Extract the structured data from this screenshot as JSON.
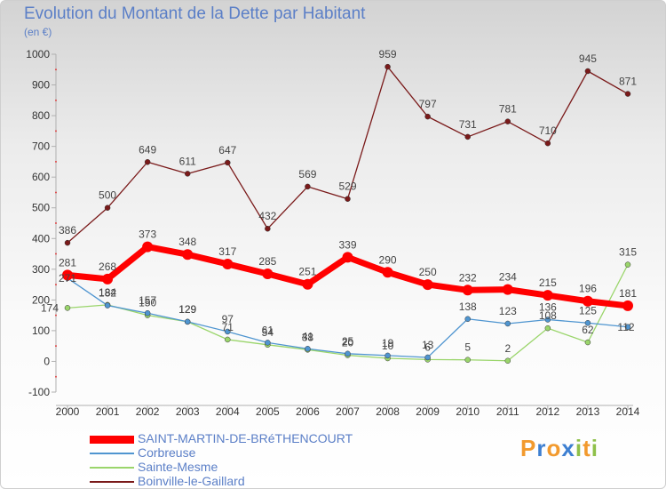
{
  "title": "Evolution du Montant de la Dette par Habitant",
  "unit": "(en €)",
  "logo": "Proxiti",
  "chart_data": {
    "type": "line",
    "title": "Evolution du Montant de la Dette par Habitant",
    "ylabel": "(en €)",
    "ylim": [
      -100,
      1000
    ],
    "yticks": [
      -100,
      0,
      100,
      200,
      300,
      400,
      500,
      600,
      700,
      800,
      900,
      1000
    ],
    "grid": false,
    "legend_position": "bottom-left",
    "x": [
      "2000",
      "2001",
      "2002",
      "2003",
      "2004",
      "2005",
      "2006",
      "2007",
      "2008",
      "2009",
      "2010",
      "2011",
      "2012",
      "2013",
      "2014"
    ],
    "series": [
      {
        "name": "SAINT-MARTIN-DE-BRéTHENCOURT",
        "color": "#ff0000",
        "values": [
          281,
          268,
          373,
          348,
          317,
          285,
          251,
          339,
          290,
          250,
          232,
          234,
          215,
          196,
          181
        ]
      },
      {
        "name": "Corbreuse",
        "color": "#4f95d0",
        "values": [
          271,
          182,
          157,
          129,
          97,
          61,
          41,
          25,
          19,
          13,
          138,
          123,
          136,
          125,
          112
        ]
      },
      {
        "name": "Sainte-Mesme",
        "color": "#9ad56b",
        "values": [
          174,
          184,
          150,
          129,
          71,
          54,
          38,
          20,
          10,
          6,
          5,
          2,
          108,
          62,
          315
        ]
      },
      {
        "name": "Boinville-le-Gaillard",
        "color": "#7a1a1a",
        "values": [
          386,
          500,
          649,
          611,
          647,
          432,
          569,
          529,
          959,
          797,
          731,
          781,
          710,
          945,
          871
        ]
      }
    ]
  }
}
